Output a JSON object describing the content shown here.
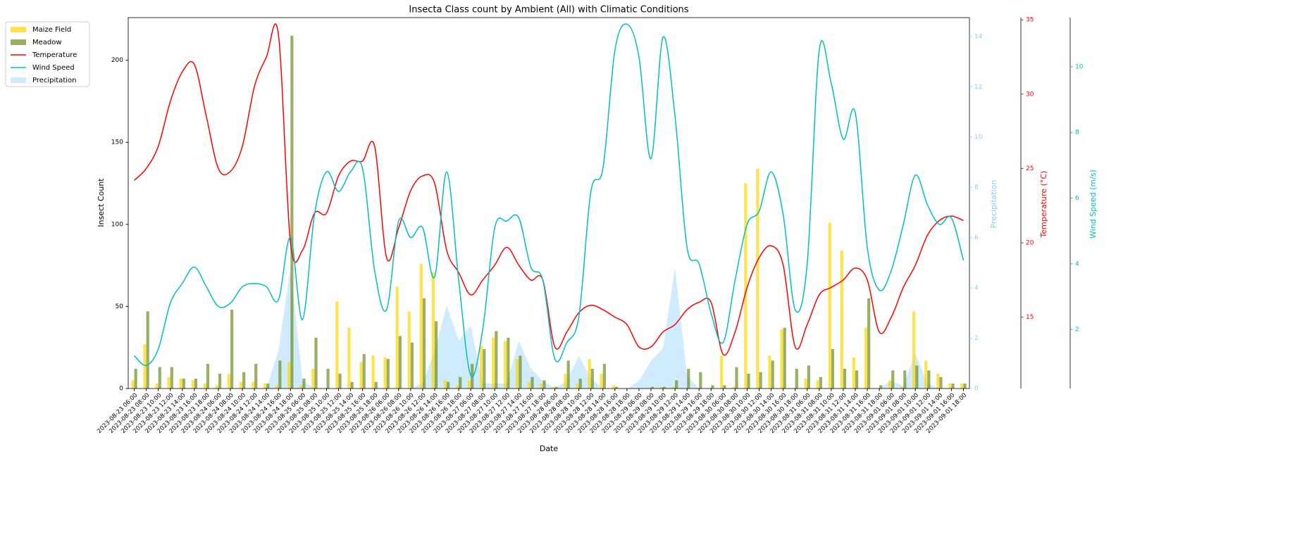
{
  "chart_data": {
    "type": "bar",
    "title": "Insecta Class count by Ambient (All) with Climatic Conditions",
    "xlabel": "Date",
    "ylabel": "Insect Count",
    "y2label": "Precipitation",
    "y3label": "Temperature (°C)",
    "y4label": "Wind Speed (m/s)",
    "legend": "upper left outside",
    "categories": [
      "2023-08-23 06:00",
      "2023-08-23 08:00",
      "2023-08-23 10:00",
      "2023-08-23 12:00",
      "2023-08-23 14:00",
      "2023-08-23 16:00",
      "2023-08-23 18:00",
      "2023-08-24 06:00",
      "2023-08-24 08:00",
      "2023-08-24 10:00",
      "2023-08-24 12:00",
      "2023-08-24 14:00",
      "2023-08-24 16:00",
      "2023-08-24 18:00",
      "2023-08-25 06:00",
      "2023-08-25 08:00",
      "2023-08-25 10:00",
      "2023-08-25 12:00",
      "2023-08-25 14:00",
      "2023-08-25 16:00",
      "2023-08-25 18:00",
      "2023-08-26 06:00",
      "2023-08-26 08:00",
      "2023-08-26 10:00",
      "2023-08-26 12:00",
      "2023-08-26 14:00",
      "2023-08-26 16:00",
      "2023-08-26 18:00",
      "2023-08-27 06:00",
      "2023-08-27 08:00",
      "2023-08-27 10:00",
      "2023-08-27 12:00",
      "2023-08-27 14:00",
      "2023-08-27 16:00",
      "2023-08-27 18:00",
      "2023-08-28 06:00",
      "2023-08-28 08:00",
      "2023-08-28 10:00",
      "2023-08-28 12:00",
      "2023-08-28 14:00",
      "2023-08-28 16:00",
      "2023-08-28 18:00",
      "2023-08-29 06:00",
      "2023-08-29 08:00",
      "2023-08-29 10:00",
      "2023-08-29 12:00",
      "2023-08-29 14:00",
      "2023-08-29 16:00",
      "2023-08-29 18:00",
      "2023-08-30 06:00",
      "2023-08-30 08:00",
      "2023-08-30 10:00",
      "2023-08-30 12:00",
      "2023-08-30 14:00",
      "2023-08-30 16:00",
      "2023-08-30 18:00",
      "2023-08-31 06:00",
      "2023-08-31 08:00",
      "2023-08-31 10:00",
      "2023-08-31 12:00",
      "2023-08-31 14:00",
      "2023-08-31 16:00",
      "2023-08-31 18:00",
      "2023-09-01 06:00",
      "2023-09-01 08:00",
      "2023-09-01 10:00",
      "2023-09-01 12:00",
      "2023-09-01 14:00",
      "2023-09-01 16:00",
      "2023-09-01 18:00"
    ],
    "ylim": [
      0,
      226
    ],
    "yticks": [
      0,
      50,
      100,
      150,
      200
    ],
    "y2lim": [
      0,
      14.75
    ],
    "y2ticks": [
      0,
      2,
      4,
      6,
      8,
      10,
      12,
      14
    ],
    "y3lim": [
      10.2,
      35.15
    ],
    "y3ticks": [
      15,
      20,
      25,
      30,
      35
    ],
    "y4lim": [
      0.2,
      11.5
    ],
    "y4ticks": [
      2,
      4,
      6,
      8,
      10
    ],
    "series": [
      {
        "name": "Maize Field",
        "type": "bar",
        "color": "#FFD700",
        "values": [
          5,
          27,
          3,
          7,
          6,
          5,
          3,
          2,
          9,
          4,
          4,
          3,
          2,
          16,
          2,
          12,
          0,
          53,
          37,
          16,
          20,
          19,
          62,
          47,
          76,
          71,
          5,
          2,
          5,
          26,
          31,
          29,
          18,
          4,
          3,
          1,
          9,
          3,
          18,
          9,
          2,
          0,
          0,
          0,
          1,
          1,
          0,
          0,
          0,
          20,
          1,
          125,
          134,
          20,
          36,
          0,
          6,
          5,
          101,
          84,
          19,
          37,
          0,
          5,
          1,
          47,
          17,
          9,
          3,
          3
        ]
      },
      {
        "name": "Meadow",
        "type": "bar",
        "color": "#6B8E23",
        "values": [
          12,
          47,
          13,
          13,
          6,
          6,
          15,
          9,
          48,
          10,
          15,
          3,
          17,
          215,
          6,
          31,
          12,
          9,
          4,
          21,
          4,
          18,
          32,
          28,
          55,
          41,
          4,
          7,
          15,
          24,
          35,
          31,
          20,
          7,
          5,
          1,
          17,
          6,
          12,
          15,
          1,
          0,
          0,
          1,
          1,
          5,
          12,
          10,
          2,
          2,
          13,
          9,
          10,
          17,
          37,
          12,
          14,
          7,
          24,
          12,
          11,
          55,
          2,
          11,
          11,
          14,
          11,
          7,
          3,
          3
        ]
      },
      {
        "name": "Temperature",
        "type": "line",
        "axis": "y3",
        "color": "#FF0000",
        "values": [
          24.2,
          25,
          26.5,
          29.5,
          31.5,
          32,
          28.5,
          25,
          24.8,
          26.5,
          30.5,
          32.5,
          34,
          20,
          19.5,
          22,
          22,
          24.5,
          25.5,
          25.5,
          26.5,
          19,
          21,
          23.5,
          24.5,
          24,
          19.5,
          18,
          16.5,
          17.5,
          18.5,
          19.7,
          18.5,
          17.5,
          17.5,
          13,
          14,
          15.3,
          15.8,
          15.5,
          15,
          14.5,
          13,
          13,
          14,
          14.5,
          15.5,
          16,
          16,
          12.5,
          14,
          17,
          19,
          19.8,
          18.5,
          13,
          14.5,
          16.5,
          17,
          17.5,
          18.3,
          17.5,
          14,
          15,
          17,
          18.5,
          20.5,
          21.5,
          21.8,
          21.5
        ]
      },
      {
        "name": "Wind Speed",
        "type": "line",
        "axis": "y4",
        "color": "#00BFBF",
        "values": [
          1.2,
          0.9,
          1.4,
          2.8,
          3.4,
          3.9,
          3.3,
          2.7,
          2.8,
          3.3,
          3.4,
          3.3,
          2.9,
          4.8,
          2.3,
          5.5,
          6.8,
          6.2,
          6.8,
          6.9,
          3.8,
          2.6,
          5.3,
          4.8,
          5.1,
          3.6,
          6.8,
          3.5,
          0.6,
          2,
          5.1,
          5.3,
          5.4,
          3.9,
          3.5,
          1.1,
          1.6,
          2.4,
          6.2,
          6.9,
          10.5,
          11.3,
          10.3,
          7.2,
          10.9,
          8.5,
          4.5,
          4,
          2.5,
          1.6,
          3.5,
          5.2,
          5.6,
          6.8,
          5.5,
          2.6,
          4,
          10.5,
          9.5,
          7.8,
          8.6,
          4.5,
          3.2,
          3.8,
          5.2,
          6.7,
          5.8,
          5.2,
          5.4,
          4.1
        ]
      },
      {
        "name": "Precipitation",
        "type": "area",
        "axis": "y2",
        "color": "#87CEFA",
        "values": [
          0,
          0,
          0,
          0,
          0,
          0,
          0,
          0,
          0,
          0,
          0,
          0,
          1.5,
          4.8,
          0.3,
          0,
          0,
          0,
          0,
          0,
          0,
          0,
          0,
          0,
          0.2,
          1.5,
          3.3,
          1.9,
          2.5,
          0.2,
          0.2,
          0.2,
          1.9,
          0.8,
          0.3,
          0,
          0.3,
          1.3,
          0.4,
          0,
          0,
          0,
          0.3,
          1.1,
          1.6,
          4.8,
          0.5,
          0,
          0,
          0,
          0,
          0,
          0,
          0,
          0,
          0,
          0,
          0,
          0,
          0,
          0,
          0,
          0,
          0.3,
          0.1,
          1.4,
          0.2,
          0,
          0,
          0
        ]
      }
    ]
  }
}
